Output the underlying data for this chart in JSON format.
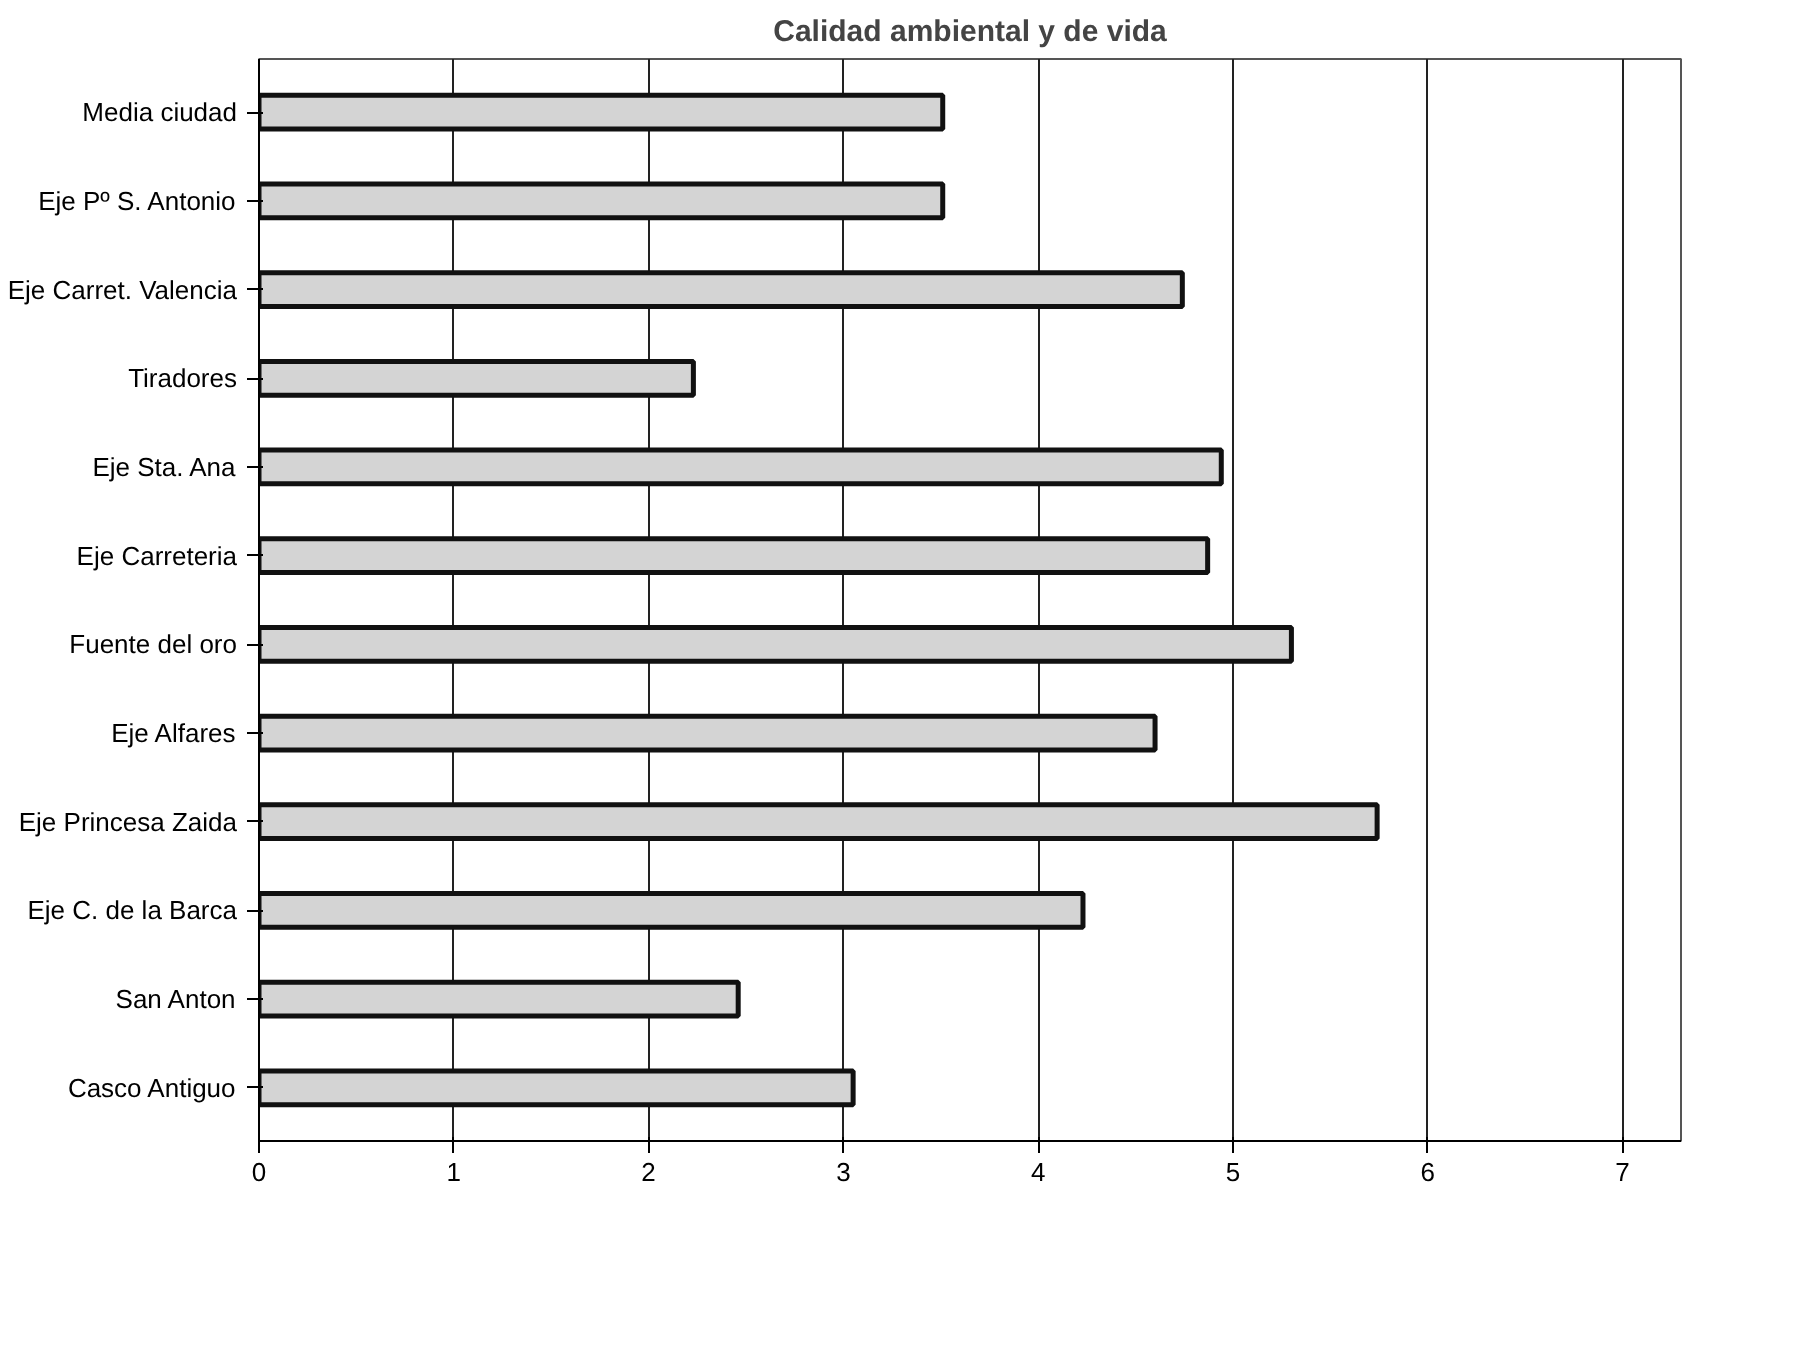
{
  "chart_data": {
    "type": "bar",
    "orientation": "horizontal",
    "title": "Calidad ambiental y de vida",
    "categories": [
      "Media ciudad",
      "Eje Pº S. Antonio",
      "Eje Carret. Valencia",
      "Tiradores",
      "Eje Sta. Ana",
      "Eje Carreteria",
      "Fuente del oro",
      "Eje Alfares",
      "Eje Princesa Zaida",
      "Eje C. de la Barca",
      "San Anton",
      "Casco Antiguo"
    ],
    "values": [
      3.51,
      3.51,
      4.74,
      2.23,
      4.94,
      4.87,
      5.3,
      4.6,
      5.74,
      4.23,
      2.46,
      3.05
    ],
    "color": "#d4d4d4",
    "xlim": [
      0,
      7.3
    ],
    "xticks": [
      0,
      1,
      2,
      3,
      4,
      5,
      6,
      7
    ],
    "grid": "x"
  }
}
